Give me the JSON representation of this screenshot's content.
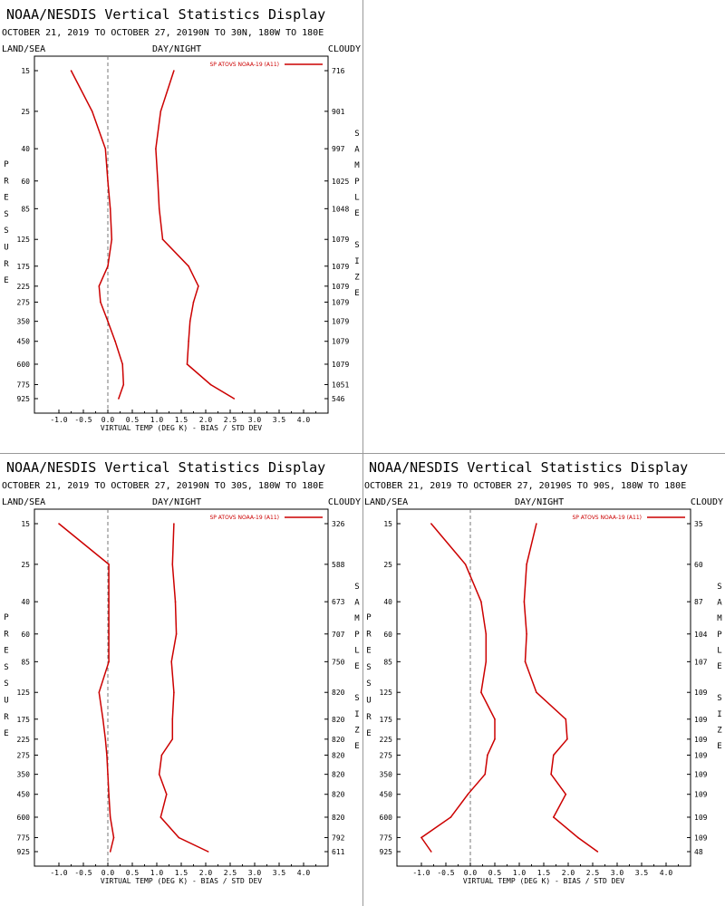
{
  "display_title": "NOAA/NESDIS Vertical Statistics Display",
  "axis_words": {
    "land_sea": "LAND/SEA",
    "day_night": "DAY/NIGHT",
    "cloudy": "CLOUDY",
    "xlabel": "VIRTUAL TEMP (DEG K) - BIAS / STD DEV",
    "left_vertical": "PRESSURE",
    "right_vertical": "SAMPLE SIZE"
  },
  "colors": {
    "series": "#cc0000",
    "zero_line": "#777777"
  },
  "chart_data": [
    {
      "type": "line",
      "title": "NOAA/NESDIS Vertical Statistics Display",
      "subtitle": "OCTOBER 21, 2019 TO OCTOBER 27, 20190N TO 30N, 180W TO 180E",
      "legend": "SP ATOVS NOAA-19 (A11)",
      "legend_position": "top-right",
      "xlabel": "VIRTUAL TEMP (DEG K) - BIAS / STD DEV",
      "ylabel": "PRESSURE",
      "y2label": "SAMPLE SIZE",
      "xlim": [
        -1.5,
        4.5
      ],
      "xticks": [
        "-1.0",
        "-0.5",
        "0.0",
        "0.5",
        "1.0",
        "1.5",
        "2.0",
        "2.5",
        "3.0",
        "3.5",
        "4.0"
      ],
      "pressure_levels": [
        "15",
        "25",
        "40",
        "60",
        "85",
        "125",
        "175",
        "225",
        "275",
        "350",
        "450",
        "600",
        "775",
        "925"
      ],
      "sample_size": [
        "716",
        "901",
        "997",
        "1025",
        "1048",
        "1079",
        "1079",
        "1079",
        "1079",
        "1079",
        "1079",
        "1079",
        "1051",
        "546"
      ],
      "bias": [
        -0.75,
        -0.32,
        -0.05,
        0.0,
        0.05,
        0.08,
        0.0,
        -0.18,
        -0.15,
        0.0,
        0.15,
        0.3,
        0.32,
        0.22
      ],
      "std_dev": [
        1.35,
        1.08,
        0.98,
        1.02,
        1.05,
        1.12,
        1.65,
        1.85,
        1.75,
        1.68,
        1.65,
        1.62,
        2.1,
        2.58
      ]
    },
    {
      "type": "line",
      "title": "NOAA/NESDIS Vertical Statistics Display",
      "subtitle": "OCTOBER 21, 2019 TO OCTOBER 27, 20190N TO 30S, 180W TO 180E",
      "legend": "SP ATOVS NOAA-19 (A11)",
      "legend_position": "top-right",
      "xlabel": "VIRTUAL TEMP (DEG K) - BIAS / STD DEV",
      "ylabel": "PRESSURE",
      "y2label": "SAMPLE SIZE",
      "xlim": [
        -1.5,
        4.5
      ],
      "xticks": [
        "-1.0",
        "-0.5",
        "0.0",
        "0.5",
        "1.0",
        "1.5",
        "2.0",
        "2.5",
        "3.0",
        "3.5",
        "4.0"
      ],
      "pressure_levels": [
        "15",
        "25",
        "40",
        "60",
        "85",
        "125",
        "175",
        "225",
        "275",
        "350",
        "450",
        "600",
        "775",
        "925"
      ],
      "sample_size": [
        "326",
        "588",
        "673",
        "707",
        "750",
        "820",
        "820",
        "820",
        "820",
        "820",
        "820",
        "820",
        "792",
        "611"
      ],
      "bias": [
        -1.0,
        0.02,
        0.02,
        0.02,
        0.02,
        -0.18,
        -0.1,
        -0.05,
        -0.02,
        0.0,
        0.02,
        0.05,
        0.12,
        0.05
      ],
      "std_dev": [
        1.35,
        1.32,
        1.38,
        1.4,
        1.3,
        1.35,
        1.32,
        1.32,
        1.1,
        1.05,
        1.2,
        1.08,
        1.45,
        2.05
      ]
    },
    {
      "type": "line",
      "title": "NOAA/NESDIS Vertical Statistics Display",
      "subtitle": "OCTOBER 21, 2019 TO OCTOBER 27, 20190S TO 90S, 180W TO 180E",
      "legend": "SP ATOVS NOAA-19 (A11)",
      "legend_position": "top-right",
      "xlabel": "VIRTUAL TEMP (DEG K) - BIAS / STD DEV",
      "ylabel": "PRESSURE",
      "y2label": "SAMPLE SIZE",
      "xlim": [
        -1.5,
        4.5
      ],
      "xticks": [
        "-1.0",
        "-0.5",
        "0.0",
        "0.5",
        "1.0",
        "1.5",
        "2.0",
        "2.5",
        "3.0",
        "3.5",
        "4.0"
      ],
      "pressure_levels": [
        "15",
        "25",
        "40",
        "60",
        "85",
        "125",
        "175",
        "225",
        "275",
        "350",
        "450",
        "600",
        "775",
        "925"
      ],
      "sample_size": [
        "35",
        "60",
        "87",
        "104",
        "107",
        "109",
        "109",
        "109",
        "109",
        "109",
        "109",
        "109",
        "109",
        "48"
      ],
      "bias": [
        -0.8,
        -0.1,
        0.22,
        0.32,
        0.32,
        0.22,
        0.5,
        0.5,
        0.35,
        0.3,
        -0.05,
        -0.4,
        -1.0,
        -0.8
      ],
      "std_dev": [
        1.35,
        1.15,
        1.1,
        1.15,
        1.12,
        1.35,
        1.95,
        1.98,
        1.7,
        1.65,
        1.95,
        1.7,
        2.2,
        2.6
      ]
    }
  ]
}
